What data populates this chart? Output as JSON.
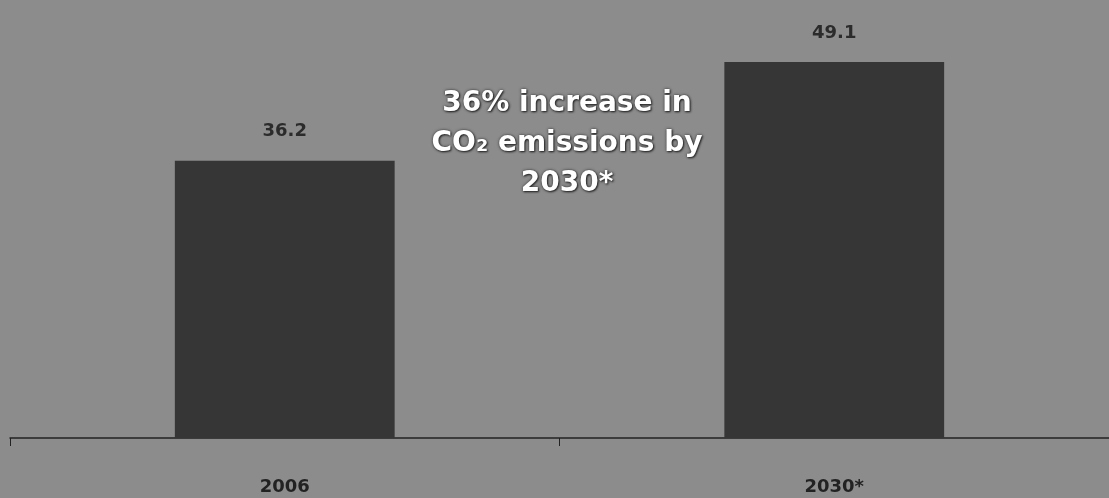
{
  "chart_data": {
    "type": "bar",
    "categories": [
      "2006",
      "2030*"
    ],
    "values": [
      36.2,
      49.1
    ],
    "color": "#363636",
    "tick_labels": "x",
    "data_labels": true,
    "grid": false,
    "annotations": [
      "36% increase in CO₂ emissions by 2030*"
    ]
  }
}
